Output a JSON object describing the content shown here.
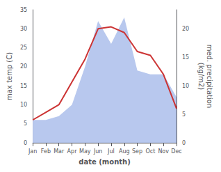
{
  "chart_data": {
    "type": "line",
    "categories": [
      "Jan",
      "Feb",
      "Mar",
      "Apr",
      "May",
      "Jun",
      "Jul",
      "Aug",
      "Sep",
      "Oct",
      "Nov",
      "Dec"
    ],
    "series": [
      {
        "type": "area",
        "color": "#b8c8ee",
        "values": [
          6,
          6,
          7,
          10,
          20,
          32,
          26,
          33,
          19,
          18,
          18,
          12
        ]
      },
      {
        "type": "line",
        "color": "#cc3333",
        "values": [
          6,
          8,
          10,
          16,
          22,
          30,
          30.5,
          29,
          24,
          23,
          18,
          9
        ]
      }
    ],
    "xlabel": "date (month)",
    "ylabel": "max temp (C)",
    "y2label": "med. precipitation\n(kg/m2)",
    "ylim": [
      0,
      35
    ],
    "yticks": [
      0,
      5,
      10,
      15,
      20,
      25,
      30,
      35
    ],
    "y2lim": [
      0,
      23.33
    ],
    "y2ticks": [
      0,
      5,
      10,
      15,
      20
    ],
    "grid": false
  }
}
